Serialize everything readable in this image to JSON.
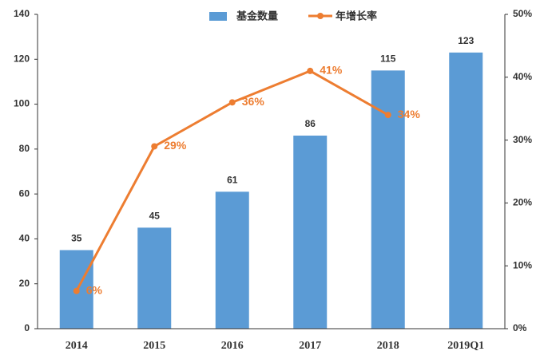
{
  "chart_data": {
    "type": "bar",
    "categories": [
      "2014",
      "2015",
      "2016",
      "2017",
      "2018",
      "2019Q1"
    ],
    "series": [
      {
        "name": "基金数量",
        "type": "bar",
        "color": "#5b9bd5",
        "values": [
          35,
          45,
          61,
          86,
          115,
          123
        ]
      },
      {
        "name": "年增长率",
        "type": "line",
        "axis": "y2",
        "color": "#ed7d31",
        "values": [
          6,
          29,
          36,
          41,
          34,
          null
        ],
        "value_labels": [
          "6%",
          "29%",
          "36%",
          "41%",
          "34%",
          null
        ]
      }
    ],
    "ylim": [
      0,
      140
    ],
    "yticks": [
      0,
      20,
      40,
      60,
      80,
      100,
      120,
      140
    ],
    "y2lim": [
      0,
      50
    ],
    "y2ticks": [
      {
        "value": 0,
        "label": "0%"
      },
      {
        "value": 10,
        "label": "10%"
      },
      {
        "value": 20,
        "label": "20%"
      },
      {
        "value": 30,
        "label": "30%"
      },
      {
        "value": 40,
        "label": "40%"
      },
      {
        "value": 50,
        "label": "50%"
      }
    ],
    "legend": "top"
  }
}
